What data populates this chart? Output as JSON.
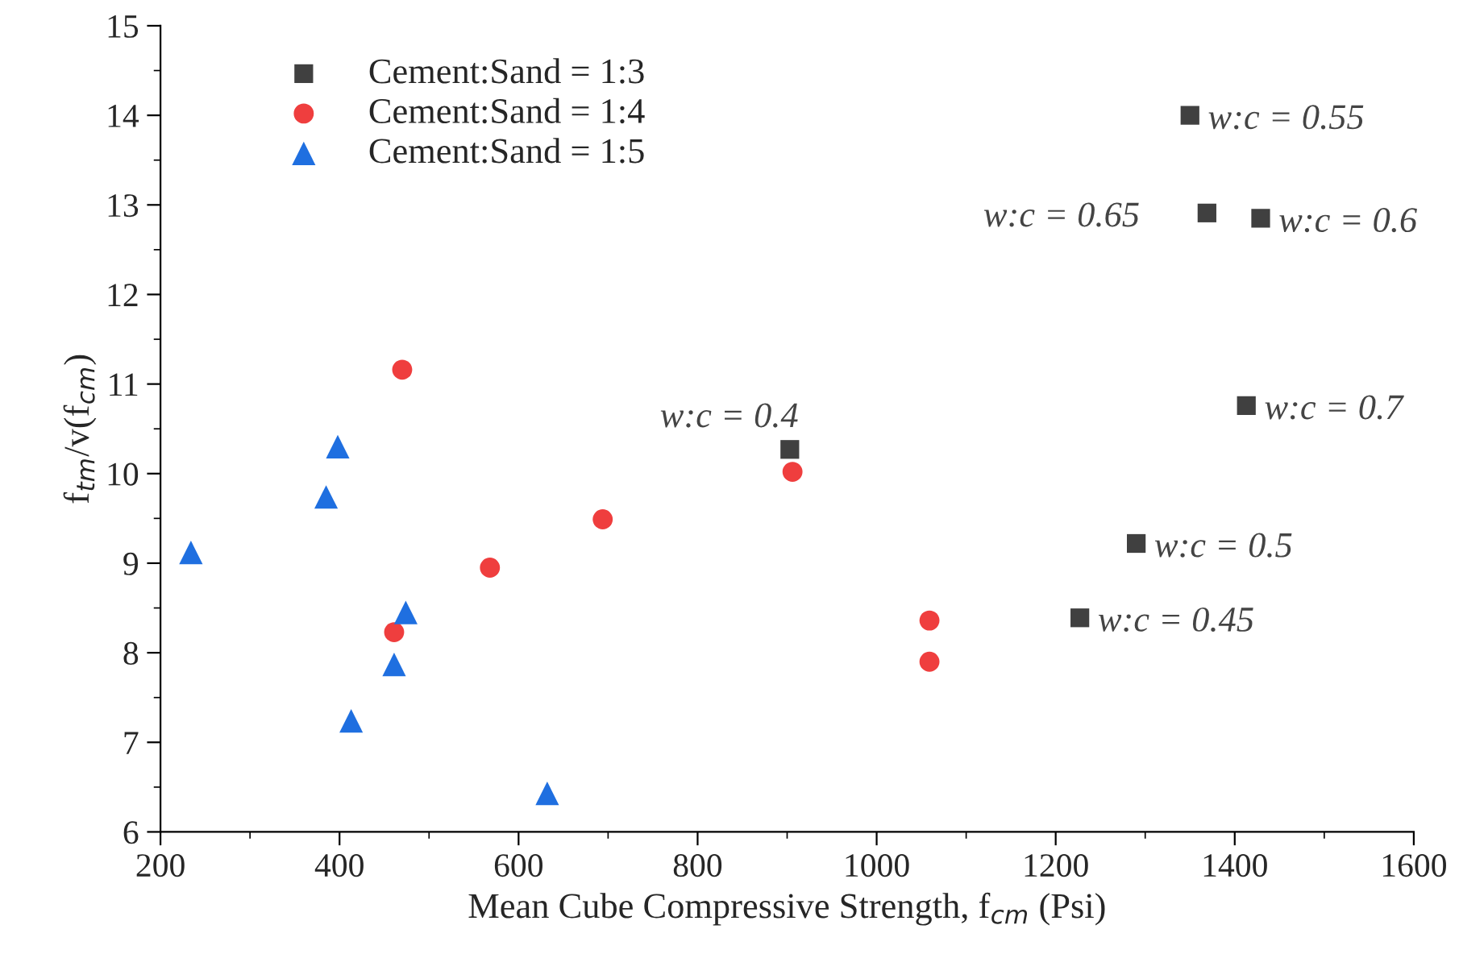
{
  "chart_data": {
    "type": "scatter",
    "xlabel": "Mean Cube Compressive Strength, f$_{cm}$ (Psi)",
    "ylabel": "f$_{tm}$/v(f$_{cm}$)",
    "xlim": [
      200,
      1600
    ],
    "xticks": [
      200,
      400,
      600,
      800,
      1000,
      1200,
      1400,
      1600
    ],
    "ylim": [
      6,
      15
    ],
    "yticks": [
      6,
      7,
      8,
      9,
      10,
      11,
      12,
      13,
      14,
      15
    ],
    "grid": false,
    "legend": "top left",
    "series": [
      {
        "name": "Cement:Sand = 1:3",
        "color": "#404040",
        "marker": "square",
        "x": [
          903,
          1227,
          1290,
          1350,
          1369,
          1429,
          1413
        ],
        "values": [
          10.27,
          8.39,
          9.22,
          14.0,
          12.91,
          12.85,
          10.76
        ]
      },
      {
        "name": "Cement:Sand = 1:4",
        "color": "#ef3e3e",
        "marker": "circle",
        "x": [
          470,
          461,
          568,
          694,
          906,
          1059,
          1059
        ],
        "values": [
          11.16,
          8.23,
          8.95,
          9.49,
          10.02,
          8.36,
          7.9
        ]
      },
      {
        "name": "Cement:Sand = 1:5",
        "color": "#1f6fe0",
        "marker": "triangle",
        "x": [
          234,
          398,
          385,
          474,
          461,
          413,
          632
        ],
        "values": [
          9.12,
          10.3,
          9.74,
          8.45,
          7.87,
          7.24,
          6.43
        ]
      }
    ],
    "annotations": [
      {
        "text": "w:c = 0.4",
        "x": 903,
        "y": 10.27
      },
      {
        "text": "w:c = 0.45",
        "x": 1227,
        "y": 8.39
      },
      {
        "text": "w:c = 0.5",
        "x": 1290,
        "y": 9.22
      },
      {
        "text": "w:c = 0.55",
        "x": 1350,
        "y": 14.0
      },
      {
        "text": "w:c = 0.65",
        "x": 1369,
        "y": 12.91
      },
      {
        "text": "w:c = 0.6",
        "x": 1429,
        "y": 12.85
      },
      {
        "text": "w:c = 0.7",
        "x": 1413,
        "y": 10.76
      }
    ]
  }
}
